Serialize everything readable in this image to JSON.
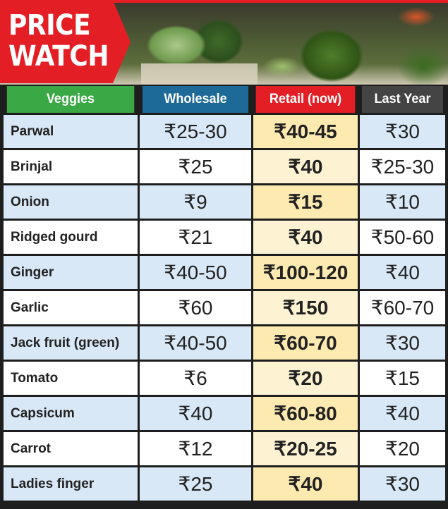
{
  "header": {
    "line1": "PRICE",
    "line2": "WATCH"
  },
  "colors": {
    "badge": "#e31e24",
    "veggies_header": "#3aa845",
    "wholesale_header": "#1d6a99",
    "retail_header": "#e31e24",
    "last_year_header": "#444444"
  },
  "chart_data": {
    "type": "table",
    "columns": [
      "Veggies",
      "Wholesale",
      "Retail (now)",
      "Last Year"
    ],
    "rows": [
      [
        "Parwal",
        "₹25-30",
        "₹40-45",
        "₹30"
      ],
      [
        "Brinjal",
        "₹25",
        "₹40",
        "₹25-30"
      ],
      [
        "Onion",
        "₹9",
        "₹15",
        "₹10"
      ],
      [
        "Ridged gourd",
        "₹21",
        "₹40",
        "₹50-60"
      ],
      [
        "Ginger",
        "₹40-50",
        "₹100-120",
        "₹40"
      ],
      [
        "Garlic",
        "₹60",
        "₹150",
        "₹60-70"
      ],
      [
        "Jack fruit (green)",
        "₹40-50",
        "₹60-70",
        "₹30"
      ],
      [
        "Tomato",
        "₹6",
        "₹20",
        "₹15"
      ],
      [
        "Capsicum",
        "₹40",
        "₹60-80",
        "₹40"
      ],
      [
        "Carrot",
        "₹12",
        "₹20-25",
        "₹20"
      ],
      [
        "Ladies finger",
        "₹25",
        "₹40",
        "₹30"
      ]
    ]
  }
}
